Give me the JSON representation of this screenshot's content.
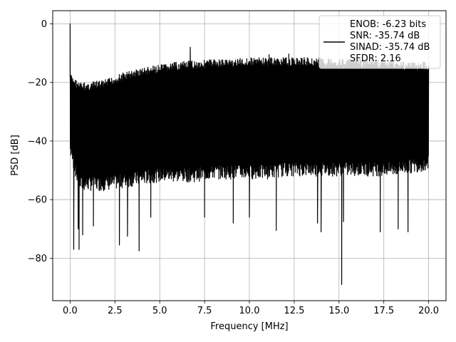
{
  "chart_data": {
    "type": "line",
    "xlabel": "Frequency [MHz]",
    "ylabel": "PSD [dB]",
    "xlim": [
      -0.97,
      20.97
    ],
    "ylim": [
      -94.5,
      4.5
    ],
    "xticks": [
      0.0,
      2.5,
      5.0,
      7.5,
      10.0,
      12.5,
      15.0,
      17.5,
      20.0
    ],
    "xtick_labels": [
      "0.0",
      "2.5",
      "5.0",
      "7.5",
      "10.0",
      "12.5",
      "15.0",
      "17.5",
      "20.0"
    ],
    "yticks": [
      0,
      -20,
      -40,
      -60,
      -80
    ],
    "ytick_labels": [
      "0",
      "−20",
      "−40",
      "−60",
      "−80"
    ],
    "grid": true,
    "legend_position": "top-right",
    "legend": [
      "ENOB: -6.23 bits",
      "SNR: -35.74 dB",
      "SINAD: -35.74 dB",
      "SFDR: 2.16"
    ],
    "series": [
      {
        "color": "#000000",
        "x_range": [
          0.0,
          20.0
        ],
        "peak": {
          "x": 0.0,
          "y": 0.0
        },
        "upper_envelope": [
          [
            0.0,
            -17
          ],
          [
            0.5,
            -20
          ],
          [
            1.0,
            -20
          ],
          [
            2.0,
            -19
          ],
          [
            3.0,
            -16.5
          ],
          [
            4.0,
            -15
          ],
          [
            5.0,
            -14
          ],
          [
            6.0,
            -13
          ],
          [
            7.0,
            -12.5
          ],
          [
            8.0,
            -12
          ],
          [
            9.0,
            -12
          ],
          [
            10.0,
            -11.5
          ],
          [
            11.0,
            -11.5
          ],
          [
            12.0,
            -11.5
          ],
          [
            13.0,
            -11.5
          ],
          [
            14.0,
            -11.5
          ],
          [
            15.0,
            -12
          ],
          [
            16.0,
            -12
          ],
          [
            17.0,
            -12
          ],
          [
            18.0,
            -12.5
          ],
          [
            19.0,
            -13
          ],
          [
            20.0,
            -13
          ]
        ],
        "lower_envelope": [
          [
            0.0,
            -45
          ],
          [
            0.5,
            -57
          ],
          [
            1.0,
            -57
          ],
          [
            2.0,
            -57
          ],
          [
            3.0,
            -56
          ],
          [
            4.0,
            -55
          ],
          [
            5.0,
            -54
          ],
          [
            6.0,
            -54
          ],
          [
            7.0,
            -54
          ],
          [
            8.0,
            -53
          ],
          [
            9.0,
            -53
          ],
          [
            10.0,
            -53
          ],
          [
            11.0,
            -53
          ],
          [
            12.0,
            -52
          ],
          [
            13.0,
            -52
          ],
          [
            14.0,
            -52
          ],
          [
            15.0,
            -52
          ],
          [
            16.0,
            -52
          ],
          [
            17.0,
            -52
          ],
          [
            18.0,
            -52
          ],
          [
            19.0,
            -51
          ],
          [
            20.0,
            -50
          ]
        ],
        "spikes": [
          [
            0.2,
            -77
          ],
          [
            0.45,
            -70
          ],
          [
            0.5,
            -77
          ],
          [
            0.7,
            -72
          ],
          [
            1.3,
            -69
          ],
          [
            2.75,
            -75.5
          ],
          [
            3.2,
            -72.5
          ],
          [
            3.85,
            -77.5
          ],
          [
            4.5,
            -66
          ],
          [
            6.7,
            -8
          ],
          [
            7.5,
            -66
          ],
          [
            9.1,
            -68
          ],
          [
            10.0,
            -66
          ],
          [
            11.5,
            -70.5
          ],
          [
            13.8,
            -68
          ],
          [
            14.0,
            -71
          ],
          [
            15.15,
            -89
          ],
          [
            15.25,
            -67.5
          ],
          [
            17.3,
            -71
          ],
          [
            18.3,
            -70
          ],
          [
            18.85,
            -71
          ],
          [
            11.1,
            -10.5
          ],
          [
            12.2,
            -10.3
          ]
        ]
      }
    ]
  }
}
